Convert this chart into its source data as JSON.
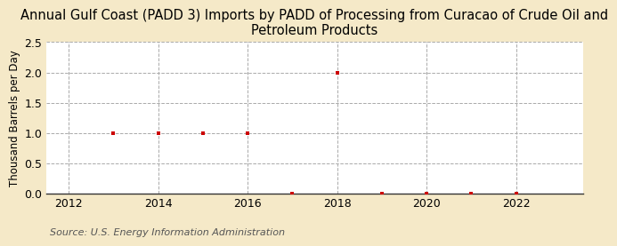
{
  "title": "Annual Gulf Coast (PADD 3) Imports by PADD of Processing from Curacao of Crude Oil and\nPetroleum Products",
  "ylabel": "Thousand Barrels per Day",
  "source": "Source: U.S. Energy Information Administration",
  "background_color": "#f5e9c8",
  "plot_background_color": "#ffffff",
  "years": [
    2013,
    2014,
    2015,
    2016,
    2017,
    2018,
    2019,
    2020,
    2021,
    2022
  ],
  "values": [
    1.0,
    1.0,
    1.0,
    1.0,
    0.0,
    2.0,
    0.0,
    0.0,
    0.0,
    0.0
  ],
  "marker_color": "#cc0000",
  "xlim": [
    2011.5,
    2023.5
  ],
  "ylim": [
    0.0,
    2.5
  ],
  "yticks": [
    0.0,
    0.5,
    1.0,
    1.5,
    2.0,
    2.5
  ],
  "xticks": [
    2012,
    2014,
    2016,
    2018,
    2020,
    2022
  ],
  "title_fontsize": 10.5,
  "label_fontsize": 8.5,
  "tick_fontsize": 9,
  "source_fontsize": 8
}
